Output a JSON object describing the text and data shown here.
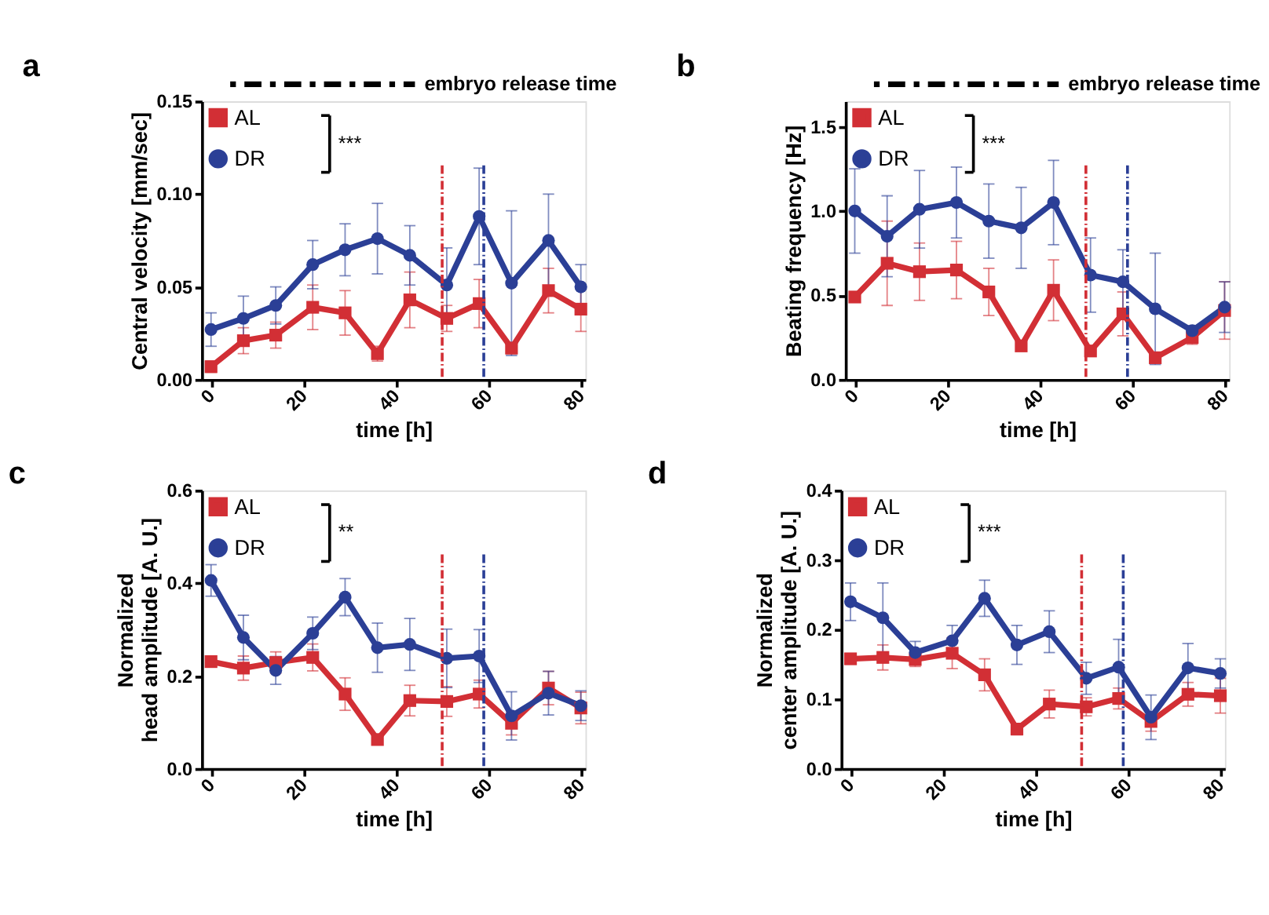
{
  "chart_data": [
    {
      "type": "line",
      "title": "a",
      "xlabel": "time [h]",
      "ylabel": "Central velocity [mm/sec]",
      "x": [
        0,
        7,
        14,
        22,
        29,
        36,
        43,
        51,
        58,
        65,
        73,
        80
      ],
      "xlim": [
        -2,
        81
      ],
      "xticks": [
        0,
        20,
        40,
        60,
        80
      ],
      "ylim": [
        0,
        0.15
      ],
      "yticks": [
        {
          "value": 0,
          "label": "0.00"
        },
        0.05,
        {
          "value": 0.1,
          "label": "0.10"
        },
        0.15
      ],
      "legend": "top left",
      "grid": false,
      "line_style": "solid",
      "series": [
        {
          "name": "AL",
          "color": "#d22f35",
          "marker": "square",
          "values": [
            0.007,
            0.021,
            0.024,
            0.039,
            0.036,
            0.014,
            0.043,
            0.033,
            0.041,
            0.017,
            0.048,
            0.038
          ],
          "errors": [
            0.003,
            0.007,
            0.007,
            0.012,
            0.012,
            0.004,
            0.015,
            0.007,
            0.013,
            0.003,
            0.012,
            0.012
          ]
        },
        {
          "name": "DR",
          "color": "#2b3f96",
          "marker": "circle",
          "values": [
            0.027,
            0.033,
            0.04,
            0.062,
            0.07,
            0.076,
            0.067,
            0.051,
            0.088,
            0.052,
            0.075,
            0.05
          ],
          "errors": [
            0.009,
            0.012,
            0.01,
            0.013,
            0.014,
            0.019,
            0.016,
            0.02,
            0.026,
            0.039,
            0.025,
            0.012
          ]
        }
      ],
      "ref_lines": [
        {
          "axis": "x",
          "value": 50,
          "color": "#d22f35",
          "line_style": "dashed"
        },
        {
          "axis": "x",
          "value": 59,
          "color": "#2b3f96",
          "line_style": "dashed"
        }
      ],
      "annotations": [
        "embryo release time",
        "***"
      ]
    },
    {
      "type": "line",
      "title": "b",
      "xlabel": "time [h]",
      "ylabel": "Beating frequency [Hz]",
      "x": [
        0,
        7,
        14,
        22,
        29,
        36,
        43,
        51,
        58,
        65,
        73,
        80
      ],
      "xlim": [
        -2,
        81
      ],
      "xticks": [
        0,
        20,
        40,
        60,
        80
      ],
      "ylim": [
        0,
        1.65
      ],
      "yticks": [
        {
          "value": 0,
          "label": "0.0"
        },
        0.5,
        {
          "value": 1,
          "label": "1.0"
        },
        1.5
      ],
      "legend": "top left",
      "grid": false,
      "line_style": "solid",
      "series": [
        {
          "name": "AL",
          "color": "#d22f35",
          "marker": "square",
          "values": [
            0.49,
            0.69,
            0.64,
            0.65,
            0.52,
            0.2,
            0.53,
            0.17,
            0.39,
            0.13,
            0.25,
            0.41
          ],
          "errors": [
            0.02,
            0.25,
            0.17,
            0.17,
            0.14,
            0.02,
            0.18,
            0.02,
            0.13,
            0.02,
            0.04,
            0.17
          ]
        },
        {
          "name": "DR",
          "color": "#2b3f96",
          "marker": "circle",
          "values": [
            1.0,
            0.85,
            1.01,
            1.05,
            0.94,
            0.9,
            1.05,
            0.62,
            0.58,
            0.42,
            0.29,
            0.43
          ],
          "errors": [
            0.25,
            0.24,
            0.23,
            0.21,
            0.22,
            0.24,
            0.25,
            0.22,
            0.19,
            0.33,
            0.03,
            0.15
          ]
        }
      ],
      "ref_lines": [
        {
          "axis": "x",
          "value": 50,
          "color": "#d22f35",
          "line_style": "dashed"
        },
        {
          "axis": "x",
          "value": 59,
          "color": "#2b3f96",
          "line_style": "dashed"
        }
      ],
      "annotations": [
        "embryo release time",
        "***"
      ]
    },
    {
      "type": "line",
      "title": "c",
      "xlabel": "time [h]",
      "ylabel": "Normalized\nhead amplitude [A. U.]",
      "x": [
        0,
        7,
        14,
        22,
        29,
        36,
        43,
        51,
        58,
        65,
        73,
        80
      ],
      "xlim": [
        -2,
        81
      ],
      "xticks": [
        0,
        20,
        40,
        60,
        80
      ],
      "ylim": [
        0,
        0.6
      ],
      "yticks": [
        {
          "value": 0,
          "label": "0.0"
        },
        0.2,
        0.4,
        0.6
      ],
      "legend": "top left",
      "grid": false,
      "line_style": "solid",
      "series": [
        {
          "name": "AL",
          "color": "#d22f35",
          "marker": "square",
          "values": [
            0.231,
            0.217,
            0.229,
            0.24,
            0.161,
            0.063,
            0.147,
            0.145,
            0.161,
            0.098,
            0.174,
            0.131
          ],
          "errors": [
            0.008,
            0.026,
            0.023,
            0.029,
            0.035,
            0.005,
            0.033,
            0.032,
            0.03,
            0.025,
            0.036,
            0.034
          ]
        },
        {
          "name": "DR",
          "color": "#2b3f96",
          "marker": "circle",
          "values": [
            0.406,
            0.283,
            0.212,
            0.292,
            0.37,
            0.261,
            0.268,
            0.238,
            0.243,
            0.114,
            0.163,
            0.136
          ],
          "errors": [
            0.034,
            0.048,
            0.03,
            0.035,
            0.04,
            0.053,
            0.056,
            0.063,
            0.057,
            0.052,
            0.047,
            0.032
          ]
        }
      ],
      "ref_lines": [
        {
          "axis": "x",
          "value": 50,
          "color": "#d22f35",
          "line_style": "dashed"
        },
        {
          "axis": "x",
          "value": 59,
          "color": "#2b3f96",
          "line_style": "dashed"
        }
      ],
      "annotations": [
        "**"
      ]
    },
    {
      "type": "line",
      "title": "d",
      "xlabel": "time [h]",
      "ylabel": "Normalized\ncenter amplitude [A. U.]",
      "x": [
        0,
        7,
        14,
        22,
        29,
        36,
        43,
        51,
        58,
        65,
        73,
        80
      ],
      "xlim": [
        -2,
        81
      ],
      "xticks": [
        0,
        20,
        40,
        60,
        80
      ],
      "ylim": [
        0,
        0.4
      ],
      "yticks": [
        {
          "value": 0,
          "label": "0.0"
        },
        0.1,
        0.2,
        0.3,
        0.4
      ],
      "legend": "top left",
      "grid": false,
      "line_style": "solid",
      "series": [
        {
          "name": "AL",
          "color": "#d22f35",
          "marker": "square",
          "values": [
            0.158,
            0.16,
            0.157,
            0.166,
            0.135,
            0.057,
            0.093,
            0.089,
            0.101,
            0.068,
            0.107,
            0.105
          ],
          "errors": [
            0.005,
            0.018,
            0.01,
            0.022,
            0.023,
            0.008,
            0.02,
            0.013,
            0.015,
            0.014,
            0.017,
            0.025
          ]
        },
        {
          "name": "DR",
          "color": "#2b3f96",
          "marker": "circle",
          "values": [
            0.24,
            0.217,
            0.167,
            0.184,
            0.245,
            0.178,
            0.197,
            0.13,
            0.146,
            0.074,
            0.145,
            0.137
          ],
          "errors": [
            0.027,
            0.05,
            0.016,
            0.022,
            0.026,
            0.028,
            0.03,
            0.023,
            0.04,
            0.032,
            0.035,
            0.021
          ]
        }
      ],
      "ref_lines": [
        {
          "axis": "x",
          "value": 50,
          "color": "#d22f35",
          "line_style": "dashed"
        },
        {
          "axis": "x",
          "value": 59,
          "color": "#2b3f96",
          "line_style": "dashed"
        }
      ],
      "annotations": [
        "***"
      ]
    }
  ]
}
